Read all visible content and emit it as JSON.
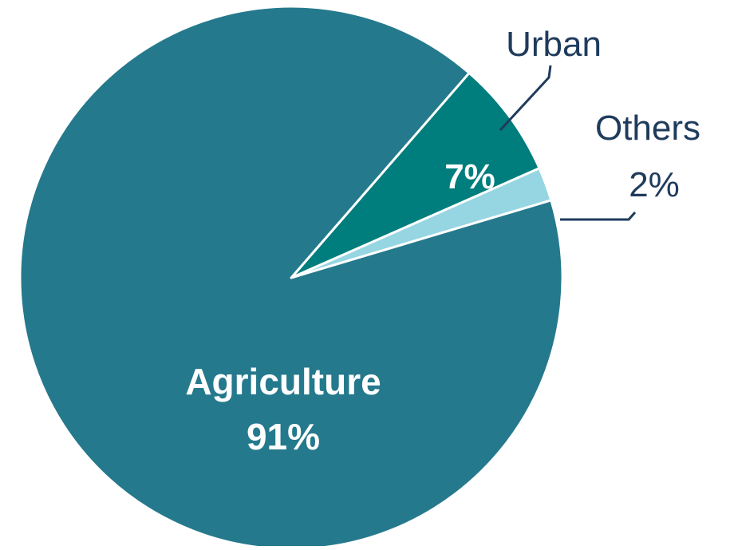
{
  "chart_data": {
    "type": "pie",
    "title": "",
    "slices": [
      {
        "name": "Agriculture",
        "value": 91,
        "label": "91%",
        "color": "#25798c"
      },
      {
        "name": "Urban",
        "value": 7,
        "label": "7%",
        "color": "#007d7d"
      },
      {
        "name": "Others",
        "value": 2,
        "label": "2%",
        "color": "#96d6e2"
      }
    ],
    "legend": "none",
    "labels": {
      "agriculture_name": "Agriculture",
      "agriculture_value": "91%",
      "urban_name": "Urban",
      "urban_value": "7%",
      "others_name": "Others",
      "others_value": "2%"
    },
    "colors": {
      "border": "#ffffff",
      "leader_line": "#1f3b5c",
      "outside_text": "#1f3b5c",
      "inside_text": "#ffffff"
    }
  }
}
